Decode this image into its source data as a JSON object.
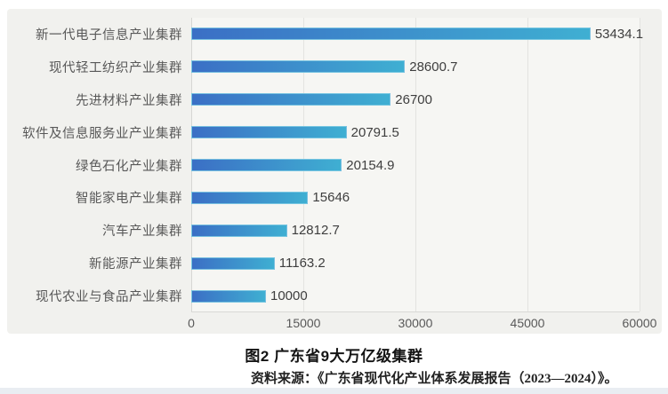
{
  "chart_data": {
    "type": "bar",
    "orientation": "horizontal",
    "categories": [
      "新一代电子信息产业集群",
      "现代轻工纺织产业集群",
      "先进材料产业集群",
      "软件及信息服务业产业集群",
      "绿色石化产业集群",
      "智能家电产业集群",
      "汽车产业集群",
      "新能源产业集群",
      "现代农业与食品产业集群"
    ],
    "values": [
      53434.1,
      28600.7,
      26700,
      20791.5,
      20154.9,
      15646,
      12812.7,
      11163.2,
      10000
    ],
    "value_labels": [
      "53434.1",
      "28600.7",
      "26700",
      "20791.5",
      "20154.9",
      "15646",
      "12812.7",
      "11163.2",
      "10000"
    ],
    "xlim": [
      0,
      60000
    ],
    "x_ticks": [
      "0",
      "15000",
      "30000",
      "45000",
      "60000"
    ],
    "grid": true,
    "legend": false,
    "title": "图2 广东省9大万亿级集群",
    "bar_color_start": "#3b6fc5",
    "bar_color_end": "#3fafd2"
  },
  "caption": {
    "title": "图2 广东省9大万亿级集群",
    "source": "资料来源：《广东省现代化产业体系发展报告（2023—2024）》。"
  }
}
